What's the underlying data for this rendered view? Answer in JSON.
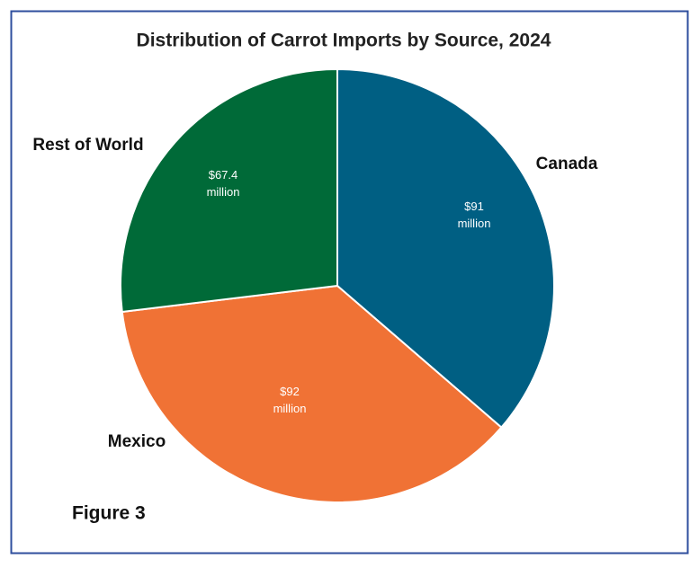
{
  "chart_data": {
    "type": "pie",
    "title": "Distribution of Carrot Imports by Source, 2024",
    "categories": [
      "Canada",
      "Mexico",
      "Rest of World"
    ],
    "values": [
      91,
      92,
      67.4
    ],
    "value_labels": [
      "$91 million",
      "$92 million",
      "$67.4 million"
    ],
    "colors": [
      "#005f83",
      "#f07235",
      "#006a38"
    ],
    "annotation": "Figure 3"
  }
}
